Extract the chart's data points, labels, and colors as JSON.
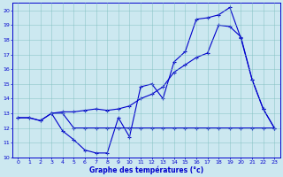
{
  "title": "Graphe des températures (°c)",
  "bg_color": "#cce8f0",
  "line_color": "#0000cc",
  "xlim": [
    -0.5,
    23.5
  ],
  "ylim": [
    10,
    20.5
  ],
  "xticks": [
    0,
    1,
    2,
    3,
    4,
    5,
    6,
    7,
    8,
    9,
    10,
    11,
    12,
    13,
    14,
    15,
    16,
    17,
    18,
    19,
    20,
    21,
    22,
    23
  ],
  "yticks": [
    10,
    11,
    12,
    13,
    14,
    15,
    16,
    17,
    18,
    19,
    20
  ],
  "line1_x": [
    0,
    1,
    2,
    3,
    4,
    5,
    6,
    7,
    8,
    9,
    10,
    11,
    12,
    13,
    14,
    15,
    16,
    17,
    18,
    19,
    20,
    21,
    22,
    23
  ],
  "line1_y": [
    12.7,
    12.7,
    12.5,
    13.0,
    11.8,
    11.2,
    10.5,
    10.3,
    10.3,
    12.7,
    11.4,
    14.8,
    15.0,
    14.0,
    16.5,
    17.2,
    19.4,
    19.5,
    19.7,
    20.2,
    18.1,
    15.3,
    13.3,
    12.0
  ],
  "line2_x": [
    0,
    1,
    2,
    3,
    4,
    5,
    6,
    7,
    8,
    9,
    10,
    11,
    12,
    13,
    14,
    15,
    16,
    17,
    18,
    19,
    20,
    21,
    22,
    23
  ],
  "line2_y": [
    12.7,
    12.7,
    12.5,
    13.0,
    13.1,
    13.1,
    13.2,
    13.3,
    13.2,
    13.3,
    13.5,
    14.0,
    14.3,
    14.8,
    15.8,
    16.3,
    16.8,
    17.1,
    19.0,
    18.9,
    18.2,
    15.3,
    13.3,
    12.0
  ],
  "line3_x": [
    3,
    4,
    5,
    6,
    7,
    8,
    9,
    10,
    11,
    12,
    13,
    14,
    15,
    16,
    17,
    18,
    19,
    20,
    21,
    22,
    23
  ],
  "line3_y": [
    13.0,
    13.0,
    12.0,
    12.0,
    12.0,
    12.0,
    12.0,
    12.0,
    12.0,
    12.0,
    12.0,
    12.0,
    12.0,
    12.0,
    12.0,
    12.0,
    12.0,
    12.0,
    12.0,
    12.0,
    12.0
  ]
}
